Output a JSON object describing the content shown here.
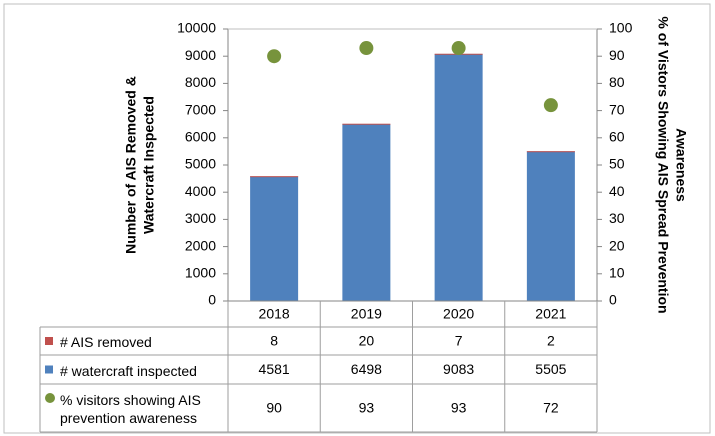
{
  "chart_data": {
    "type": "bar",
    "ylabel": [
      "Number of AIS Removed &",
      "Watercraft Inspected"
    ],
    "y2label": [
      "% of Vistors Showing AIS Spread Prevention",
      "Awareness"
    ],
    "categories": [
      "2018",
      "2019",
      "2020",
      "2021"
    ],
    "series": [
      {
        "name": "# AIS removed",
        "type": "bar",
        "color": "#c0504d",
        "values": [
          8,
          20,
          7,
          2
        ]
      },
      {
        "name": "# watercraft inspected",
        "type": "bar",
        "color": "#4f81bd",
        "values": [
          4581,
          6498,
          9083,
          5505
        ]
      },
      {
        "name": "% visitors showing AIS prevention awareness",
        "type": "scatter",
        "axis": "y2",
        "color": "#77933c",
        "values": [
          90,
          93,
          93,
          72
        ]
      }
    ],
    "ylim": [
      0,
      10000
    ],
    "yticks": [
      0,
      1000,
      2000,
      3000,
      4000,
      5000,
      6000,
      7000,
      8000,
      9000,
      10000
    ],
    "y2lim": [
      0,
      100
    ],
    "y2ticks": [
      0,
      10,
      20,
      30,
      40,
      50,
      60,
      70,
      80,
      90,
      100
    ],
    "grid": false
  }
}
